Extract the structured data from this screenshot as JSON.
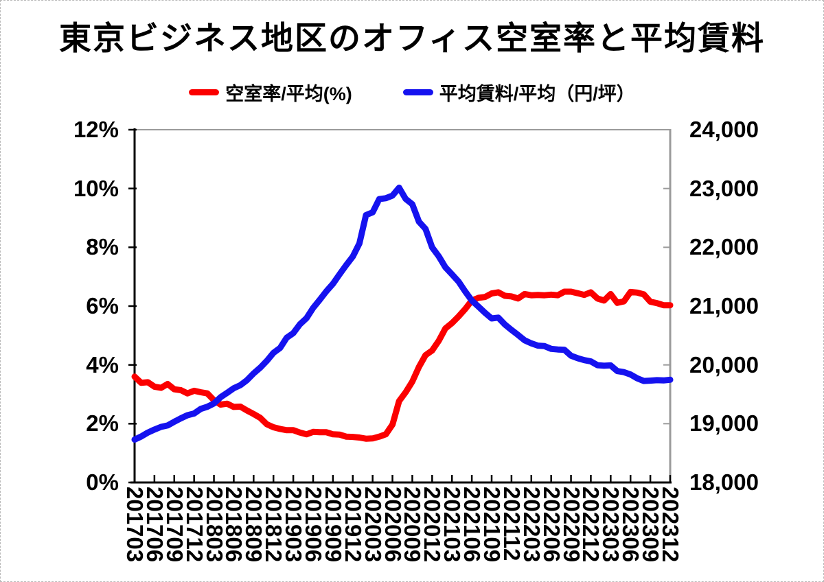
{
  "title": "東京ビジネス地区のオフィス空室率と平均賃料",
  "legend": [
    {
      "label": "空室率/平均(%)",
      "color": "#fb0000"
    },
    {
      "label": "平均賃料/平均（円/坪）",
      "color": "#1512ef"
    }
  ],
  "colors": {
    "axis_black": "#000000",
    "axis_gray": "#9b9b9b",
    "background": "#ffffff",
    "vacancy_red": "#fb0000",
    "rent_blue": "#1512ef"
  },
  "chart_data": {
    "type": "line",
    "title": "東京ビジネス地区のオフィス空室率と平均賃料",
    "grid": "top-border-only",
    "legend_position": "top",
    "x_tick_interval": 3,
    "categories": [
      "201703",
      "201704",
      "201705",
      "201706",
      "201707",
      "201708",
      "201709",
      "201710",
      "201711",
      "201712",
      "201801",
      "201802",
      "201803",
      "201804",
      "201805",
      "201806",
      "201807",
      "201808",
      "201809",
      "201810",
      "201811",
      "201812",
      "201901",
      "201902",
      "201903",
      "201904",
      "201905",
      "201906",
      "201907",
      "201908",
      "201909",
      "201910",
      "201911",
      "201912",
      "202001",
      "202002",
      "202003",
      "202004",
      "202005",
      "202006",
      "202007",
      "202008",
      "202009",
      "202010",
      "202011",
      "202012",
      "202101",
      "202102",
      "202103",
      "202104",
      "202105",
      "202106",
      "202107",
      "202108",
      "202109",
      "202110",
      "202111",
      "202112",
      "202201",
      "202202",
      "202203",
      "202204",
      "202205",
      "202206",
      "202207",
      "202208",
      "202209",
      "202210",
      "202211",
      "202212",
      "202301",
      "202302",
      "202303",
      "202304",
      "202305",
      "202306",
      "202307",
      "202308",
      "202309",
      "202310",
      "202311",
      "202312"
    ],
    "x_tick_labels": [
      "201703",
      "201706",
      "201709",
      "201712",
      "201803",
      "201806",
      "201809",
      "201812",
      "201903",
      "201906",
      "201909",
      "201912",
      "202003",
      "202006",
      "202009",
      "202012",
      "202103",
      "202106",
      "202109",
      "202112",
      "202203",
      "202206",
      "202209",
      "202212",
      "202303",
      "202306",
      "202309",
      "202312"
    ],
    "left_axis": {
      "min": 0,
      "max": 12,
      "step": 2,
      "tick_labels": [
        "0%",
        "2%",
        "4%",
        "6%",
        "8%",
        "10%",
        "12%"
      ]
    },
    "right_axis": {
      "min": 18000,
      "max": 24000,
      "step": 1000,
      "tick_labels": [
        "18,000",
        "19,000",
        "20,000",
        "21,000",
        "22,000",
        "23,000",
        "24,000"
      ]
    },
    "series": [
      {
        "name": "空室率/平均(%)",
        "axis": "left",
        "unit": "%",
        "color": "#fb0000",
        "values": [
          3.6,
          3.39,
          3.41,
          3.26,
          3.22,
          3.35,
          3.17,
          3.14,
          3.03,
          3.12,
          3.07,
          3.03,
          2.8,
          2.65,
          2.68,
          2.57,
          2.58,
          2.45,
          2.33,
          2.2,
          1.98,
          1.88,
          1.82,
          1.78,
          1.78,
          1.7,
          1.64,
          1.72,
          1.71,
          1.71,
          1.64,
          1.63,
          1.56,
          1.55,
          1.53,
          1.49,
          1.5,
          1.56,
          1.64,
          1.97,
          2.77,
          3.07,
          3.43,
          3.93,
          4.33,
          4.49,
          4.82,
          5.24,
          5.42,
          5.65,
          5.9,
          6.19,
          6.28,
          6.31,
          6.43,
          6.47,
          6.35,
          6.33,
          6.26,
          6.41,
          6.37,
          6.38,
          6.37,
          6.39,
          6.37,
          6.49,
          6.49,
          6.44,
          6.38,
          6.47,
          6.26,
          6.19,
          6.41,
          6.11,
          6.16,
          6.48,
          6.46,
          6.4,
          6.15,
          6.1,
          6.03,
          6.03
        ]
      },
      {
        "name": "平均賃料/平均（円/坪）",
        "axis": "right",
        "unit": "円/坪",
        "color": "#1512ef",
        "values": [
          18730,
          18782,
          18849,
          18900,
          18946,
          18970,
          19033,
          19091,
          19144,
          19173,
          19251,
          19287,
          19344,
          19450,
          19525,
          19603,
          19655,
          19741,
          19855,
          19953,
          20069,
          20205,
          20288,
          20462,
          20540,
          20690,
          20794,
          20968,
          21106,
          21252,
          21379,
          21540,
          21696,
          21843,
          22066,
          22548,
          22594,
          22820,
          22835,
          22880,
          23014,
          22822,
          22733,
          22436,
          22313,
          21999,
          21846,
          21661,
          21541,
          21415,
          21249,
          21095,
          20992,
          20886,
          20790,
          20804,
          20686,
          20595,
          20508,
          20418,
          20366,
          20328,
          20320,
          20273,
          20262,
          20258,
          20156,
          20114,
          20081,
          20059,
          19995,
          19986,
          19991,
          19895,
          19877,
          19837,
          19772,
          19726,
          19732,
          19741,
          19736,
          19748
        ]
      }
    ]
  }
}
